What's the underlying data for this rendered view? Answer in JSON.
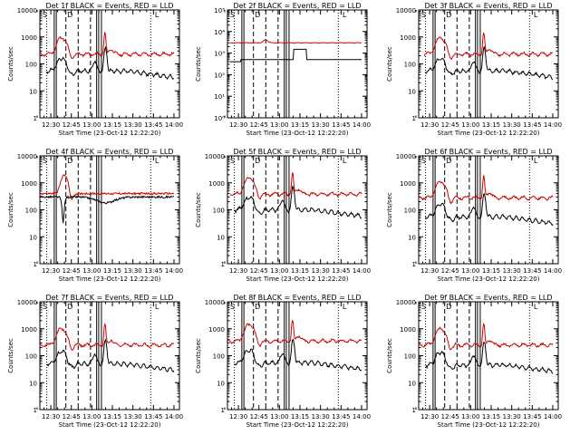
{
  "chart_data": [
    {
      "type": "line",
      "title": "Det 1f BLACK = Events, RED = LLD",
      "xlabel": "Start Time (23-Oct-12 12:22:20)",
      "ylabel": "Counts/sec",
      "y_scale": "log",
      "ylim": [
        1,
        10000
      ],
      "y_ticks": [
        1,
        10,
        100,
        1000,
        10000
      ],
      "y_tick_labels": [
        "1",
        "10",
        "100",
        "1000",
        "10000"
      ],
      "xlim": [
        "12:22",
        "14:04"
      ],
      "x_tick_labels": [
        "12:30",
        "12:45",
        "13:00",
        "13:15",
        "13:30",
        "13:45",
        "14:00"
      ],
      "markers": [
        "S",
        "D",
        "L"
      ],
      "series": [
        {
          "name": "RED = LLD",
          "color": "#cc0000",
          "shape": "a",
          "base": 230
        },
        {
          "name": "BLACK = Events",
          "color": "#000000",
          "shape": "b",
          "base": 55
        }
      ]
    },
    {
      "type": "line",
      "title": "Det 2f BLACK = Events, RED = LLD",
      "xlabel": "Start Time (23-Oct-12 12:22:20)",
      "ylabel": "Counts/sec",
      "y_scale": "log",
      "ylim": [
        1,
        100000
      ],
      "y_ticks": [
        1,
        10,
        100,
        1000,
        10000,
        100000
      ],
      "y_tick_labels": [
        "10⁰",
        "10¹",
        "10²",
        "10³",
        "10⁴",
        "10⁵"
      ],
      "xlim": [
        "12:22",
        "14:04"
      ],
      "x_tick_labels": [
        "12:30",
        "12:45",
        "13:00",
        "13:15",
        "13:30",
        "13:45",
        "14:00"
      ],
      "markers": [
        "S",
        "D",
        "L"
      ],
      "series": [
        {
          "name": "RED = LLD",
          "color": "#cc0000",
          "shape": "flat_red",
          "base": 3000
        },
        {
          "name": "BLACK = Events",
          "color": "#000000",
          "shape": "flat_black",
          "base": 500
        }
      ]
    },
    {
      "type": "line",
      "title": "Det 3f BLACK = Events, RED = LLD",
      "xlabel": "Start Time (23-Oct-12 12:22:20)",
      "ylabel": "Counts/sec",
      "y_scale": "log",
      "ylim": [
        1,
        10000
      ],
      "y_ticks": [
        1,
        10,
        100,
        1000,
        10000
      ],
      "y_tick_labels": [
        "1",
        "10",
        "100",
        "1000",
        "10000"
      ],
      "xlim": [
        "12:22",
        "14:04"
      ],
      "x_tick_labels": [
        "12:30",
        "12:45",
        "13:00",
        "13:15",
        "13:30",
        "13:45",
        "14:00"
      ],
      "markers": [
        "S",
        "D",
        "L"
      ],
      "series": [
        {
          "name": "RED = LLD",
          "color": "#cc0000",
          "shape": "a",
          "base": 230
        },
        {
          "name": "BLACK = Events",
          "color": "#000000",
          "shape": "b",
          "base": 55
        }
      ]
    },
    {
      "type": "line",
      "title": "Det 4f BLACK = Events, RED = LLD",
      "xlabel": "Start Time (23-Oct-12 12:22:20)",
      "ylabel": "Counts/sec",
      "y_scale": "log",
      "ylim": [
        1,
        10000
      ],
      "y_ticks": [
        1,
        10,
        100,
        1000,
        10000
      ],
      "y_tick_labels": [
        "1",
        "10",
        "100",
        "1000",
        "10000"
      ],
      "xlim": [
        "12:22",
        "14:04"
      ],
      "x_tick_labels": [
        "12:30",
        "12:45",
        "13:00",
        "13:15",
        "13:30",
        "13:45",
        "14:00"
      ],
      "markers": [
        "S",
        "D",
        "L"
      ],
      "series": [
        {
          "name": "RED = LLD",
          "color": "#cc0000",
          "shape": "d4red",
          "base": 400
        },
        {
          "name": "BLACK = Events",
          "color": "#000000",
          "shape": "d4black",
          "base": 300
        }
      ]
    },
    {
      "type": "line",
      "title": "Det 5f BLACK = Events, RED = LLD",
      "xlabel": "Start Time (23-Oct-12 12:22:20)",
      "ylabel": "Counts/sec",
      "y_scale": "log",
      "ylim": [
        1,
        10000
      ],
      "y_ticks": [
        1,
        10,
        100,
        1000,
        10000
      ],
      "y_tick_labels": [
        "1",
        "10",
        "100",
        "1000",
        "10000"
      ],
      "xlim": [
        "12:22",
        "14:04"
      ],
      "x_tick_labels": [
        "12:30",
        "12:45",
        "13:00",
        "13:15",
        "13:30",
        "13:45",
        "14:00"
      ],
      "markers": [
        "S",
        "D",
        "L"
      ],
      "series": [
        {
          "name": "RED = LLD",
          "color": "#cc0000",
          "shape": "a",
          "base": 380
        },
        {
          "name": "BLACK = Events",
          "color": "#000000",
          "shape": "b",
          "base": 100
        }
      ]
    },
    {
      "type": "line",
      "title": "Det 6f BLACK = Events, RED = LLD",
      "xlabel": "Start Time (23-Oct-12 12:22:20)",
      "ylabel": "Counts/sec",
      "y_scale": "log",
      "ylim": [
        1,
        10000
      ],
      "y_ticks": [
        1,
        10,
        100,
        1000,
        10000
      ],
      "y_tick_labels": [
        "1",
        "10",
        "100",
        "1000",
        "10000"
      ],
      "xlim": [
        "12:22",
        "14:04"
      ],
      "x_tick_labels": [
        "12:30",
        "12:45",
        "13:00",
        "13:15",
        "13:30",
        "13:45",
        "14:00"
      ],
      "markers": [
        "S",
        "D",
        "L"
      ],
      "series": [
        {
          "name": "RED = LLD",
          "color": "#cc0000",
          "shape": "a",
          "base": 280
        },
        {
          "name": "BLACK = Events",
          "color": "#000000",
          "shape": "b",
          "base": 55
        }
      ]
    },
    {
      "type": "line",
      "title": "Det 7f BLACK = Events, RED = LLD",
      "xlabel": "Start Time (23-Oct-12 12:22:20)",
      "ylabel": "Counts/sec",
      "y_scale": "log",
      "ylim": [
        1,
        10000
      ],
      "y_ticks": [
        1,
        10,
        100,
        1000,
        10000
      ],
      "y_tick_labels": [
        "1",
        "10",
        "100",
        "1000",
        "10000"
      ],
      "xlim": [
        "12:22",
        "14:04"
      ],
      "x_tick_labels": [
        "12:30",
        "12:45",
        "13:00",
        "13:15",
        "13:30",
        "13:45",
        "14:00"
      ],
      "markers": [
        "S",
        "D",
        "L"
      ],
      "series": [
        {
          "name": "RED = LLD",
          "color": "#cc0000",
          "shape": "a",
          "base": 250
        },
        {
          "name": "BLACK = Events",
          "color": "#000000",
          "shape": "b",
          "base": 50
        }
      ]
    },
    {
      "type": "line",
      "title": "Det 8f BLACK = Events, RED = LLD",
      "xlabel": "Start Time (23-Oct-12 12:22:20)",
      "ylabel": "Counts/sec",
      "y_scale": "log",
      "ylim": [
        1,
        10000
      ],
      "y_ticks": [
        1,
        10,
        100,
        1000,
        10000
      ],
      "y_tick_labels": [
        "1",
        "10",
        "100",
        "1000",
        "10000"
      ],
      "xlim": [
        "12:22",
        "14:04"
      ],
      "x_tick_labels": [
        "12:30",
        "12:45",
        "13:00",
        "13:15",
        "13:30",
        "13:45",
        "14:00"
      ],
      "markers": [
        "S",
        "D",
        "L"
      ],
      "series": [
        {
          "name": "RED = LLD",
          "color": "#cc0000",
          "shape": "a",
          "base": 350
        },
        {
          "name": "BLACK = Events",
          "color": "#000000",
          "shape": "b",
          "base": 55
        }
      ]
    },
    {
      "type": "line",
      "title": "Det 9f BLACK = Events, RED = LLD",
      "xlabel": "Start Time (23-Oct-12 12:22:20)",
      "ylabel": "Counts/sec",
      "y_scale": "log",
      "ylim": [
        1,
        10000
      ],
      "y_ticks": [
        1,
        10,
        100,
        1000,
        10000
      ],
      "y_tick_labels": [
        "1",
        "10",
        "100",
        "1000",
        "10000"
      ],
      "xlim": [
        "12:22",
        "14:04"
      ],
      "x_tick_labels": [
        "12:30",
        "12:45",
        "13:00",
        "13:15",
        "13:30",
        "13:45",
        "14:00"
      ],
      "markers": [
        "S",
        "D",
        "L"
      ],
      "series": [
        {
          "name": "RED = LLD",
          "color": "#cc0000",
          "shape": "a",
          "base": 250
        },
        {
          "name": "BLACK = Events",
          "color": "#000000",
          "shape": "b",
          "base": 45
        }
      ]
    }
  ]
}
